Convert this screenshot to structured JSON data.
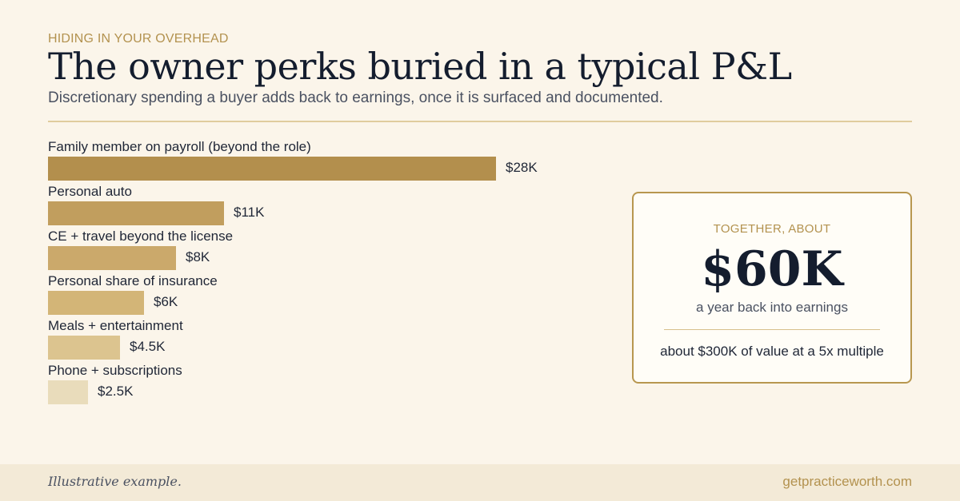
{
  "header": {
    "eyebrow": "HIDING IN YOUR OVERHEAD",
    "title": "The owner perks buried in a typical P&L",
    "subtitle": "Discretionary spending a buyer adds back to earnings, once it is surfaced and documented."
  },
  "chart_data": {
    "type": "bar",
    "orientation": "horizontal",
    "categories": [
      "Family member on payroll (beyond the role)",
      "Personal auto",
      "CE + travel beyond the license",
      "Personal share of insurance",
      "Meals + entertainment",
      "Phone + subscriptions"
    ],
    "values": [
      28,
      11,
      8,
      6,
      4.5,
      2.5
    ],
    "value_labels": [
      "$28K",
      "$11K",
      "$8K",
      "$6K",
      "$4.5K",
      "$2.5K"
    ],
    "unit": "K USD",
    "xlim": [
      0,
      28
    ],
    "grid": false,
    "bar_colors": [
      "#b38f4d",
      "#c19e5e",
      "#cba96b",
      "#d3b577",
      "#dcc48f",
      "#e9dcbb"
    ]
  },
  "callout": {
    "eyebrow": "TOGETHER, ABOUT",
    "value": "$60K",
    "sub": "a year back into earnings",
    "note": "about $300K of value at a 5x multiple"
  },
  "footer": {
    "footnote": "Illustrative example.",
    "site": "getpracticeworth.com"
  }
}
